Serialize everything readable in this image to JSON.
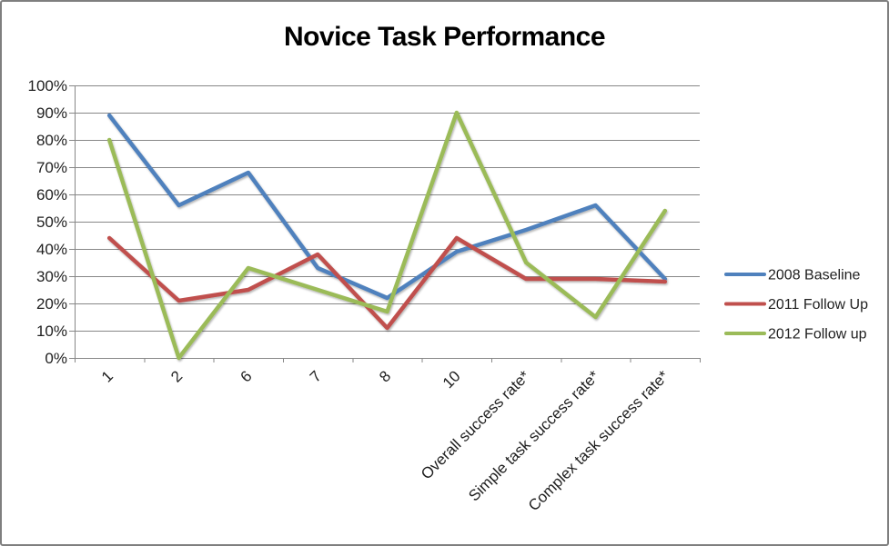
{
  "window": {
    "background": "#ffffff",
    "border_color": "#7f7f7f"
  },
  "chart_data": {
    "type": "line",
    "title": "Novice Task Performance",
    "categories": [
      "1",
      "2",
      "6",
      "7",
      "8",
      "10",
      "Overall success rate*",
      "Simple task success rate*",
      "Complex task success rate*"
    ],
    "series": [
      {
        "name": "2008 Baseline",
        "color": "#4F81BD",
        "values": [
          89,
          56,
          68,
          33,
          22,
          39,
          47,
          56,
          29
        ]
      },
      {
        "name": "2011 Follow Up",
        "color": "#C0504D",
        "values": [
          44,
          21,
          25,
          38,
          11,
          44,
          29,
          29,
          28
        ]
      },
      {
        "name": "2012 Follow up",
        "color": "#9BBB59",
        "values": [
          80,
          0,
          33,
          25,
          17,
          90,
          35,
          15,
          54
        ]
      }
    ],
    "xlabel": "",
    "ylabel": "",
    "ylim": [
      0,
      100
    ],
    "ytick_step": 10,
    "ytick_labels": [
      "0%",
      "10%",
      "20%",
      "30%",
      "40%",
      "50%",
      "60%",
      "70%",
      "80%",
      "90%",
      "100%"
    ],
    "x_tick_label_rotation_deg": 45,
    "grid": "horizontal",
    "gridline_color": "#878787",
    "axis_text_color": "#1f1f1f",
    "legend_position": "right"
  }
}
